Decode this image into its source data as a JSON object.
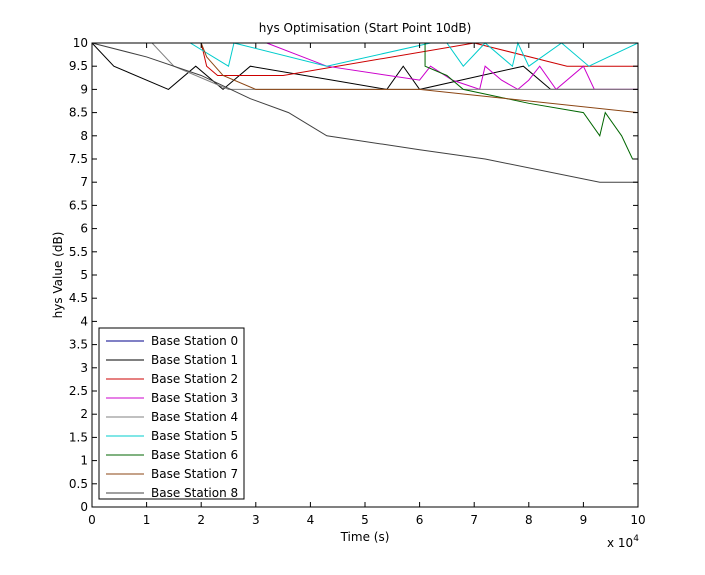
{
  "chart_data": {
    "type": "line",
    "title": "hys Optimisation (Start Point 10dB)",
    "xlabel": "Time (s)",
    "ylabel": "hys Value (dB)",
    "x_multiplier_label": "x 10",
    "x_multiplier_exponent": "4",
    "xlim": [
      0,
      100000
    ],
    "ylim": [
      0,
      10
    ],
    "xticks": [
      0,
      10000,
      20000,
      30000,
      40000,
      50000,
      60000,
      70000,
      80000,
      90000,
      100000
    ],
    "xtick_labels": [
      "0",
      "1",
      "2",
      "3",
      "4",
      "5",
      "6",
      "7",
      "8",
      "9",
      "10"
    ],
    "yticks": [
      0,
      0.5,
      1,
      1.5,
      2,
      2.5,
      3,
      3.5,
      4,
      4.5,
      5,
      5.5,
      6,
      6.5,
      7,
      7.5,
      8,
      8.5,
      9,
      9.5,
      10
    ],
    "ytick_labels": [
      "0",
      "0.5",
      "1",
      "1.5",
      "2",
      "2.5",
      "3",
      "3.5",
      "4",
      "4.5",
      "5",
      "5.5",
      "6",
      "6.5",
      "7",
      "7.5",
      "8",
      "8.5",
      "9",
      "9.5",
      "10"
    ],
    "grid": false,
    "legend_position": "bottom-left",
    "series": [
      {
        "name": "Base Station 0",
        "color": "#00008b",
        "x": [
          0,
          100000
        ],
        "y": [
          10,
          10
        ]
      },
      {
        "name": "Base Station 1",
        "color": "#000000",
        "x": [
          0,
          4000,
          14000,
          19000,
          24000,
          29000,
          44000,
          54000,
          57000,
          60000,
          79000,
          84000,
          100000
        ],
        "y": [
          10,
          9.5,
          9,
          9.5,
          9,
          9.5,
          9.2,
          9,
          9.5,
          9,
          9.5,
          9,
          9
        ]
      },
      {
        "name": "Base Station 2",
        "color": "#cc0000",
        "x": [
          0,
          20000,
          21000,
          23000,
          35000,
          70000,
          87000,
          100000
        ],
        "y": [
          10,
          10,
          9.5,
          9.3,
          9.3,
          10,
          9.5,
          9.5
        ]
      },
      {
        "name": "Base Station 3",
        "color": "#cc00cc",
        "x": [
          0,
          32000,
          43000,
          60000,
          62000,
          66000,
          71000,
          72000,
          75000,
          78000,
          80000,
          82000,
          85000,
          90000,
          92000,
          100000
        ],
        "y": [
          10,
          10,
          9.5,
          9.2,
          9.5,
          9.2,
          9,
          9.5,
          9.2,
          9,
          9.2,
          9.5,
          9,
          9.5,
          9,
          9
        ]
      },
      {
        "name": "Base Station 4",
        "color": "#808080",
        "x": [
          0,
          11000,
          15000,
          21000,
          25000,
          30000,
          36000,
          43000,
          100000
        ],
        "y": [
          10,
          10,
          9.5,
          9.2,
          9,
          9,
          9,
          9,
          9
        ]
      },
      {
        "name": "Base Station 5",
        "color": "#00cccc",
        "x": [
          0,
          18000,
          25000,
          26000,
          43000,
          62000,
          65000,
          68000,
          72000,
          77000,
          78000,
          80000,
          86000,
          91000,
          100000
        ],
        "y": [
          10,
          10,
          9.5,
          10,
          9.5,
          10,
          10,
          9.5,
          10,
          9.5,
          10,
          9.5,
          10,
          9.5,
          10
        ]
      },
      {
        "name": "Base Station 6",
        "color": "#006600",
        "x": [
          0,
          61000,
          61000,
          65000,
          68000,
          80000,
          90000,
          93000,
          94000,
          97000,
          99000,
          100000
        ],
        "y": [
          10,
          10,
          9.5,
          9.3,
          9,
          8.7,
          8.5,
          8,
          8.5,
          8,
          7.5,
          7.5
        ]
      },
      {
        "name": "Base Station 7",
        "color": "#8b4513",
        "x": [
          0,
          20000,
          21000,
          24000,
          30000,
          60000,
          100000
        ],
        "y": [
          10,
          10,
          9.7,
          9.3,
          9,
          9,
          8.5
        ]
      },
      {
        "name": "Base Station 8",
        "color": "#404040",
        "x": [
          0,
          10000,
          20000,
          29000,
          36000,
          43000,
          60000,
          72000,
          93000,
          100000
        ],
        "y": [
          10,
          9.7,
          9.3,
          8.8,
          8.5,
          8,
          7.7,
          7.5,
          7,
          7
        ]
      }
    ]
  }
}
